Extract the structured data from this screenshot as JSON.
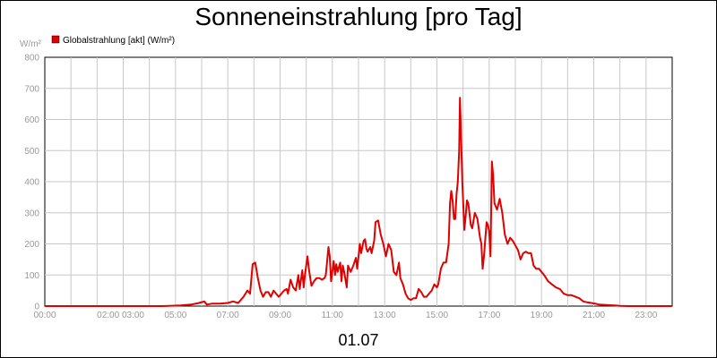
{
  "chart_data": {
    "type": "line",
    "title": "Sonneneinstrahlung [pro Tag]",
    "ylabel": "W/m²",
    "xlabel": "01.07",
    "ylim": [
      0,
      800
    ],
    "xlim": [
      0,
      24
    ],
    "yticks": [
      "0",
      "100",
      "200",
      "300",
      "400",
      "500",
      "600",
      "700",
      "800"
    ],
    "xticks": [
      {
        "pos": 0,
        "label": "00:00"
      },
      {
        "pos": 2.9,
        "label": "02:00 03:00"
      },
      {
        "pos": 5,
        "label": "05:00"
      },
      {
        "pos": 7,
        "label": "07:00"
      },
      {
        "pos": 9,
        "label": "09:00"
      },
      {
        "pos": 11,
        "label": "11:00"
      },
      {
        "pos": 13,
        "label": "13:00"
      },
      {
        "pos": 15,
        "label": "15:00"
      },
      {
        "pos": 17,
        "label": "17:00"
      },
      {
        "pos": 19,
        "label": "19:00"
      },
      {
        "pos": 21,
        "label": "21:00"
      },
      {
        "pos": 23,
        "label": "23:00"
      }
    ],
    "grid": true,
    "legend_placement": "top-left",
    "series": [
      {
        "name": "Globalstrahlung [akt] (W/m²)",
        "color": "#e00000",
        "points": [
          [
            0,
            0
          ],
          [
            4.5,
            0
          ],
          [
            5.2,
            2
          ],
          [
            5.6,
            5
          ],
          [
            5.9,
            10
          ],
          [
            6.1,
            15
          ],
          [
            6.2,
            5
          ],
          [
            6.4,
            8
          ],
          [
            6.7,
            8
          ],
          [
            7.0,
            10
          ],
          [
            7.2,
            15
          ],
          [
            7.4,
            10
          ],
          [
            7.6,
            30
          ],
          [
            7.75,
            50
          ],
          [
            7.85,
            40
          ],
          [
            7.95,
            135
          ],
          [
            8.05,
            140
          ],
          [
            8.15,
            90
          ],
          [
            8.25,
            50
          ],
          [
            8.35,
            30
          ],
          [
            8.45,
            45
          ],
          [
            8.55,
            45
          ],
          [
            8.65,
            30
          ],
          [
            8.75,
            50
          ],
          [
            8.85,
            40
          ],
          [
            8.95,
            30
          ],
          [
            9.05,
            40
          ],
          [
            9.15,
            50
          ],
          [
            9.25,
            55
          ],
          [
            9.3,
            40
          ],
          [
            9.4,
            85
          ],
          [
            9.5,
            60
          ],
          [
            9.6,
            50
          ],
          [
            9.7,
            100
          ],
          [
            9.75,
            55
          ],
          [
            9.85,
            115
          ],
          [
            9.9,
            60
          ],
          [
            9.95,
            100
          ],
          [
            10.05,
            160
          ],
          [
            10.1,
            120
          ],
          [
            10.2,
            65
          ],
          [
            10.3,
            80
          ],
          [
            10.4,
            90
          ],
          [
            10.5,
            90
          ],
          [
            10.6,
            85
          ],
          [
            10.7,
            90
          ],
          [
            10.75,
            100
          ],
          [
            10.85,
            190
          ],
          [
            10.9,
            160
          ],
          [
            10.95,
            80
          ],
          [
            11.05,
            145
          ],
          [
            11.1,
            100
          ],
          [
            11.15,
            135
          ],
          [
            11.2,
            110
          ],
          [
            11.3,
            140
          ],
          [
            11.35,
            80
          ],
          [
            11.4,
            130
          ],
          [
            11.45,
            110
          ],
          [
            11.55,
            60
          ],
          [
            11.6,
            130
          ],
          [
            11.7,
            110
          ],
          [
            11.8,
            130
          ],
          [
            11.9,
            155
          ],
          [
            11.95,
            120
          ],
          [
            12.05,
            200
          ],
          [
            12.1,
            170
          ],
          [
            12.2,
            210
          ],
          [
            12.25,
            215
          ],
          [
            12.3,
            185
          ],
          [
            12.35,
            175
          ],
          [
            12.45,
            190
          ],
          [
            12.5,
            170
          ],
          [
            12.6,
            210
          ],
          [
            12.65,
            270
          ],
          [
            12.75,
            275
          ],
          [
            12.85,
            230
          ],
          [
            12.95,
            200
          ],
          [
            13.05,
            160
          ],
          [
            13.15,
            200
          ],
          [
            13.25,
            180
          ],
          [
            13.35,
            110
          ],
          [
            13.45,
            100
          ],
          [
            13.55,
            140
          ],
          [
            13.6,
            90
          ],
          [
            13.7,
            70
          ],
          [
            13.8,
            40
          ],
          [
            13.9,
            25
          ],
          [
            14.0,
            20
          ],
          [
            14.1,
            25
          ],
          [
            14.2,
            25
          ],
          [
            14.3,
            55
          ],
          [
            14.4,
            45
          ],
          [
            14.5,
            30
          ],
          [
            14.6,
            30
          ],
          [
            14.7,
            40
          ],
          [
            14.8,
            50
          ],
          [
            14.9,
            70
          ],
          [
            15.0,
            60
          ],
          [
            15.05,
            70
          ],
          [
            15.15,
            120
          ],
          [
            15.25,
            140
          ],
          [
            15.35,
            140
          ],
          [
            15.45,
            200
          ],
          [
            15.5,
            330
          ],
          [
            15.55,
            370
          ],
          [
            15.6,
            340
          ],
          [
            15.65,
            280
          ],
          [
            15.7,
            280
          ],
          [
            15.75,
            360
          ],
          [
            15.8,
            400
          ],
          [
            15.85,
            500
          ],
          [
            15.88,
            670
          ],
          [
            15.92,
            560
          ],
          [
            15.97,
            400
          ],
          [
            16.02,
            300
          ],
          [
            16.05,
            245
          ],
          [
            16.1,
            290
          ],
          [
            16.15,
            340
          ],
          [
            16.2,
            330
          ],
          [
            16.3,
            260
          ],
          [
            16.35,
            250
          ],
          [
            16.45,
            300
          ],
          [
            16.55,
            280
          ],
          [
            16.65,
            220
          ],
          [
            16.7,
            200
          ],
          [
            16.75,
            120
          ],
          [
            16.8,
            160
          ],
          [
            16.9,
            270
          ],
          [
            16.95,
            260
          ],
          [
            17.0,
            240
          ],
          [
            17.05,
            160
          ],
          [
            17.1,
            465
          ],
          [
            17.15,
            420
          ],
          [
            17.2,
            330
          ],
          [
            17.3,
            310
          ],
          [
            17.4,
            345
          ],
          [
            17.5,
            300
          ],
          [
            17.6,
            230
          ],
          [
            17.7,
            200
          ],
          [
            17.8,
            220
          ],
          [
            17.9,
            210
          ],
          [
            18.0,
            195
          ],
          [
            18.1,
            180
          ],
          [
            18.2,
            150
          ],
          [
            18.3,
            170
          ],
          [
            18.4,
            175
          ],
          [
            18.5,
            170
          ],
          [
            18.6,
            170
          ],
          [
            18.7,
            130
          ],
          [
            18.8,
            120
          ],
          [
            18.9,
            120
          ],
          [
            19.0,
            110
          ],
          [
            19.1,
            100
          ],
          [
            19.25,
            80
          ],
          [
            19.4,
            70
          ],
          [
            19.55,
            60
          ],
          [
            19.7,
            55
          ],
          [
            19.85,
            40
          ],
          [
            20.0,
            35
          ],
          [
            20.15,
            35
          ],
          [
            20.3,
            30
          ],
          [
            20.45,
            25
          ],
          [
            20.6,
            15
          ],
          [
            20.75,
            12
          ],
          [
            20.9,
            10
          ],
          [
            21.05,
            8
          ],
          [
            21.2,
            5
          ],
          [
            21.4,
            4
          ],
          [
            21.6,
            3
          ],
          [
            21.8,
            2
          ],
          [
            22.0,
            1
          ],
          [
            22.3,
            0
          ],
          [
            24,
            0
          ]
        ]
      }
    ]
  }
}
